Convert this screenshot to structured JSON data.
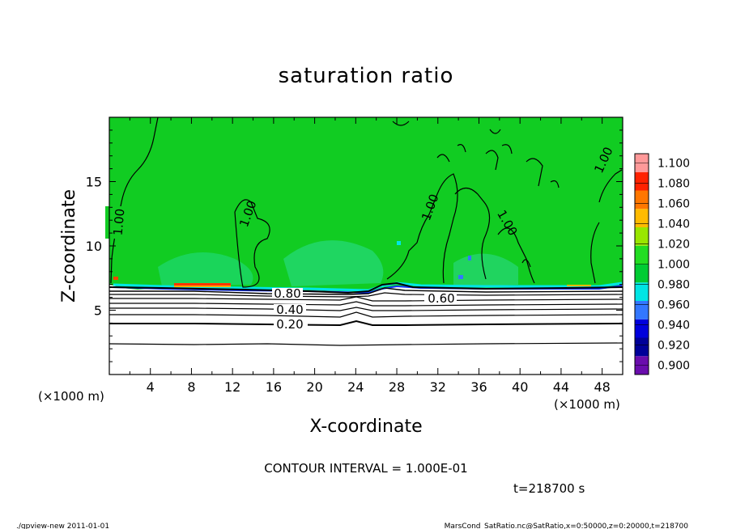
{
  "chart_data": {
    "type": "heatmap",
    "title": "saturation ratio",
    "xlabel": "X-coordinate",
    "ylabel": "Z-coordinate",
    "x_unit": "(×1000 m)",
    "x_unit_right": "(×1000 m)",
    "y_unit": "(×1000 m)",
    "xlim": [
      0,
      50
    ],
    "ylim": [
      0,
      20
    ],
    "x_ticks": [
      "4",
      "8",
      "12",
      "16",
      "20",
      "24",
      "28",
      "32",
      "36",
      "40",
      "44",
      "48"
    ],
    "y_ticks": [
      "5",
      "10",
      "15"
    ],
    "colorbar": {
      "levels": [
        "0.900",
        "0.920",
        "0.940",
        "0.960",
        "0.980",
        "1.000",
        "1.020",
        "1.040",
        "1.060",
        "1.080",
        "1.100"
      ],
      "colors": [
        "#6a0dad",
        "#000099",
        "#0000dd",
        "#3377ff",
        "#00e5e5",
        "#00cc33",
        "#22dd22",
        "#99e600",
        "#ffbb00",
        "#ff7700",
        "#ff2200",
        "#ff9999"
      ]
    },
    "contour_labels": [
      "1.00",
      "1.00",
      "1.00",
      "1.00",
      "1.00",
      "0.80",
      "0.60",
      "0.40",
      "0.20"
    ],
    "annotations": {
      "contour_interval": "CONTOUR INTERVAL = 1.000E-01",
      "time": "t=218700 s"
    }
  },
  "footer": {
    "left": "./gpview-new   2011-01-01",
    "right": "MarsCond_SatRatio.nc@SatRatio,x=0:50000,z=0:20000,t=218700"
  }
}
